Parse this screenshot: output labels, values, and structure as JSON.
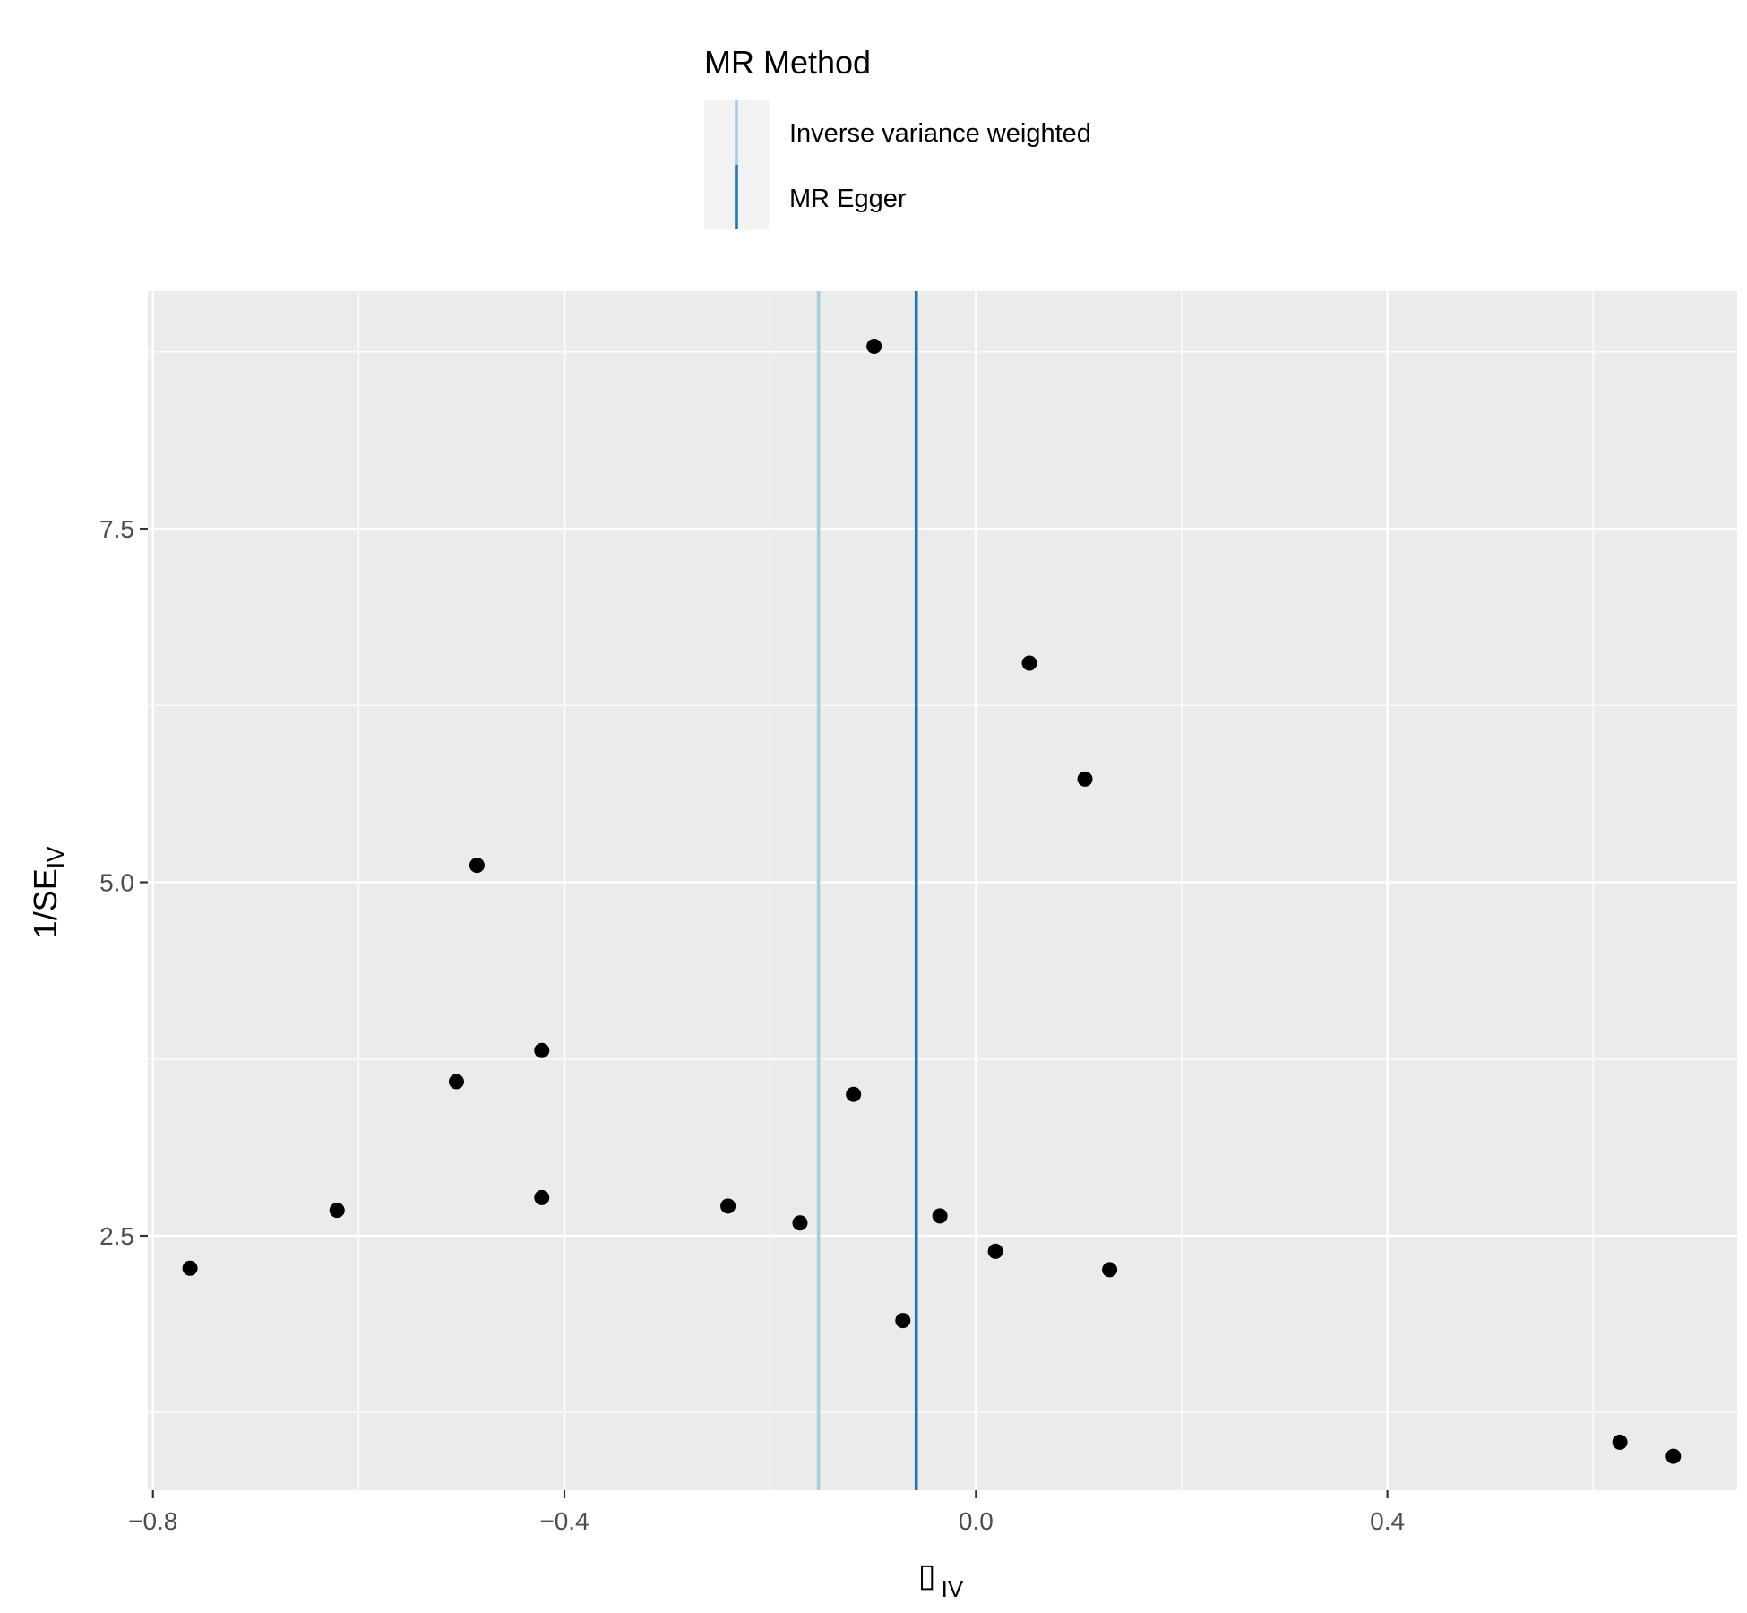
{
  "chart_data": {
    "type": "scatter",
    "legend": {
      "title": "MR Method",
      "position": "top",
      "entries": [
        {
          "label": "Inverse variance weighted",
          "color": "#A6CEE3"
        },
        {
          "label": "MR Egger",
          "color": "#1F78B4"
        }
      ]
    },
    "xlabel": {
      "glyph": "▯",
      "sub": "IV"
    },
    "ylabel": {
      "main": "1/SE",
      "sub": "IV"
    },
    "xlim": [
      -0.805,
      0.74
    ],
    "ylim": [
      0.7,
      9.18
    ],
    "x_ticks": [
      {
        "value": -0.8,
        "label": "−0.8"
      },
      {
        "value": -0.4,
        "label": "−0.4"
      },
      {
        "value": 0.0,
        "label": "0.0"
      },
      {
        "value": 0.4,
        "label": "0.4"
      }
    ],
    "x_minor": [
      -0.6,
      -0.2,
      0.2,
      0.6
    ],
    "y_ticks": [
      {
        "value": 2.5,
        "label": "2.5"
      },
      {
        "value": 5.0,
        "label": "5.0"
      },
      {
        "value": 7.5,
        "label": "7.5"
      }
    ],
    "y_minor": [
      1.25,
      3.75,
      6.25,
      8.75
    ],
    "grid": true,
    "vlines": [
      {
        "method": "Inverse variance weighted",
        "x": -0.153,
        "color": "#A6CEE3"
      },
      {
        "method": "MR Egger",
        "x": -0.058,
        "color": "#1F78B4"
      }
    ],
    "points": [
      {
        "x": -0.764,
        "y": 2.27
      },
      {
        "x": -0.621,
        "y": 2.68
      },
      {
        "x": -0.505,
        "y": 3.59
      },
      {
        "x": -0.485,
        "y": 5.12
      },
      {
        "x": -0.422,
        "y": 3.81
      },
      {
        "x": -0.422,
        "y": 2.77
      },
      {
        "x": -0.241,
        "y": 2.71
      },
      {
        "x": -0.171,
        "y": 2.59
      },
      {
        "x": -0.119,
        "y": 3.5
      },
      {
        "x": -0.099,
        "y": 8.79
      },
      {
        "x": -0.071,
        "y": 1.9
      },
      {
        "x": -0.035,
        "y": 2.64
      },
      {
        "x": 0.019,
        "y": 2.39
      },
      {
        "x": 0.052,
        "y": 6.55
      },
      {
        "x": 0.106,
        "y": 5.73
      },
      {
        "x": 0.13,
        "y": 2.26
      },
      {
        "x": 0.626,
        "y": 1.04
      },
      {
        "x": 0.678,
        "y": 0.94
      }
    ]
  }
}
